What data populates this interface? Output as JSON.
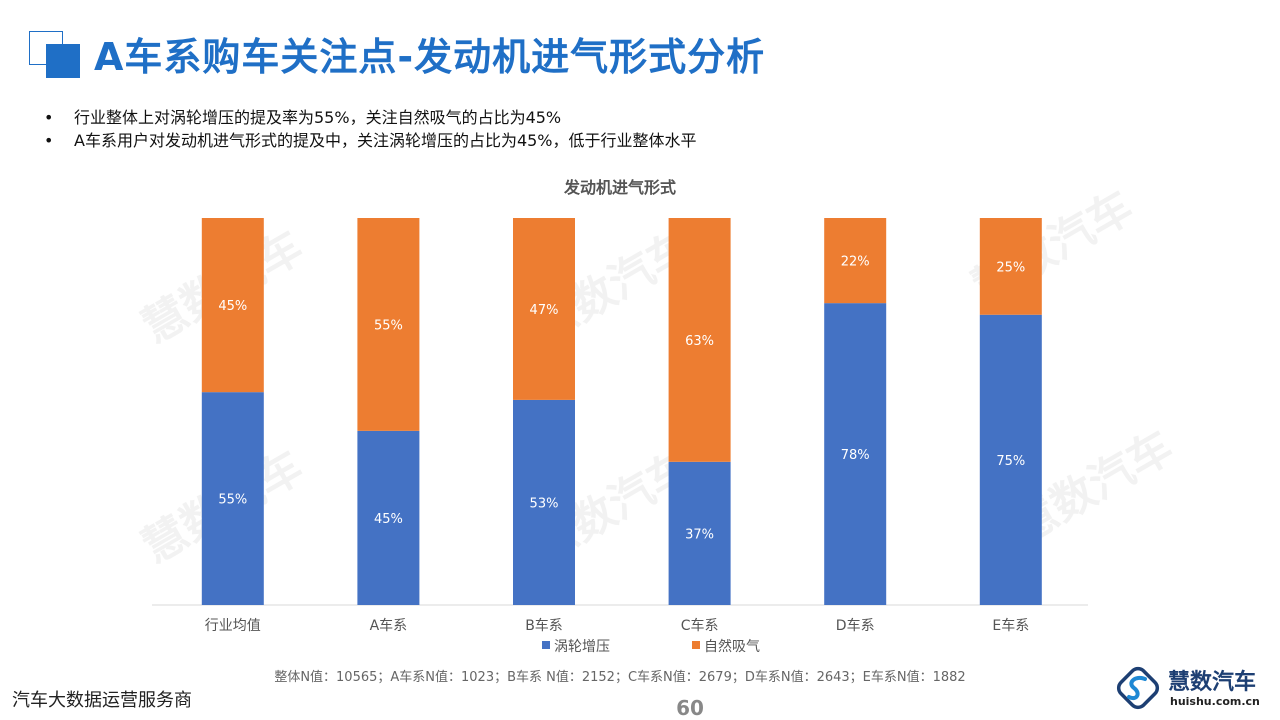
{
  "header": {
    "title": "A车系购车关注点-发动机进气形式分析"
  },
  "bullets": [
    "行业整体上对涡轮增压的提及率为55%，关注自然吸气的占比为45%",
    "A车系用户对发动机进气形式的提及中，关注涡轮增压的占比为45%，低于行业整体水平"
  ],
  "chart_data": {
    "type": "bar",
    "stacked": true,
    "title": "发动机进气形式",
    "categories": [
      "行业均值",
      "A车系",
      "B车系",
      "C车系",
      "D车系",
      "E车系"
    ],
    "series": [
      {
        "name": "涡轮增压",
        "color": "#4472c4",
        "values": [
          55,
          45,
          53,
          37,
          78,
          75
        ],
        "labels": [
          "55%",
          "45%",
          "53%",
          "37%",
          "78%",
          "75%"
        ]
      },
      {
        "name": "自然吸气",
        "color": "#ed7d31",
        "values": [
          45,
          55,
          47,
          63,
          22,
          25
        ],
        "labels": [
          "45%",
          "55%",
          "47%",
          "63%",
          "22%",
          "25%"
        ]
      }
    ],
    "ylim": [
      0,
      100
    ],
    "legend_position": "bottom",
    "grid": false,
    "note": "整体N值：10565；A车系N值：1023；B车系 N值：2152；C车系N值：2679；D车系N值：2643；E车系N值：1882"
  },
  "watermark": "慧数汽车",
  "footer": {
    "left_text": "汽车大数据运营服务商",
    "page_number": "60"
  },
  "brand": {
    "name": "慧数汽车",
    "url": "huishu.com.cn"
  },
  "colors": {
    "accent": "#1f6fc6",
    "turbo": "#4472c4",
    "natural": "#ed7d31"
  }
}
